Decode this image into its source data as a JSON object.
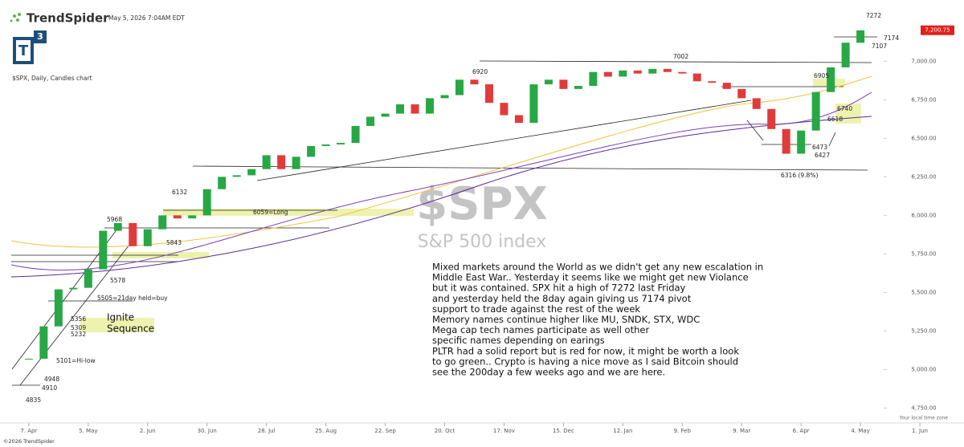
{
  "header": {
    "brand": "TrendSpider",
    "timestamp": "May 5, 2026 7:04AM EDT",
    "logo_letter": "T",
    "logo_superscript": "3",
    "chart_label": "$SPX, Daily, Candles chart",
    "copyright": "©2026 TrendSpider",
    "timezone": "Your local time zone"
  },
  "chart_data": {
    "type": "candlestick",
    "watermark_symbol": "$SPX",
    "watermark_name": "S&P 500 index",
    "x": [
      0,
      1,
      2,
      3,
      4,
      5,
      6,
      7,
      8,
      9,
      10,
      11,
      12,
      13,
      14,
      15,
      16,
      17,
      18,
      19,
      20,
      21,
      22,
      23,
      24,
      25,
      26,
      27,
      28,
      29,
      30,
      31,
      32,
      33,
      34,
      35,
      36,
      37,
      38,
      39,
      40,
      41,
      42,
      43,
      44,
      45,
      46,
      47,
      48,
      49,
      50,
      51,
      52,
      53,
      54,
      55,
      56
    ],
    "close": [
      5070,
      5280,
      5520,
      5530,
      5650,
      5900,
      5950,
      5800,
      5910,
      6000,
      5980,
      6000,
      6170,
      6250,
      6260,
      6300,
      6390,
      6300,
      6380,
      6450,
      6460,
      6470,
      6580,
      6640,
      6660,
      6720,
      6660,
      6760,
      6780,
      6880,
      6850,
      6730,
      6650,
      6600,
      6850,
      6880,
      6820,
      6840,
      6930,
      6900,
      6940,
      6920,
      6950,
      6930,
      6920,
      6870,
      6860,
      6820,
      6760,
      6690,
      6560,
      6400,
      6550,
      6800,
      6960,
      7120,
      7200
    ],
    "up_color": "#27a844",
    "down_color": "#e23a3a",
    "xlim": [
      -1.4,
      57.4
    ],
    "xticks": [
      {
        "value": 0,
        "label": "7. Apr"
      },
      {
        "value": 4,
        "label": "5. May"
      },
      {
        "value": 8,
        "label": "2. Jun"
      },
      {
        "value": 12,
        "label": "30. Jun"
      },
      {
        "value": 16,
        "label": "28. Jul"
      },
      {
        "value": 20,
        "label": "25. Aug"
      },
      {
        "value": 24,
        "label": "22. Sep"
      },
      {
        "value": 28,
        "label": "20. Oct"
      },
      {
        "value": 32,
        "label": "17. Nov"
      },
      {
        "value": 36,
        "label": "15. Dec"
      },
      {
        "value": 40,
        "label": "12. Jan"
      },
      {
        "value": 44,
        "label": "9. Feb"
      },
      {
        "value": 48,
        "label": "9. Mar"
      },
      {
        "value": 52,
        "label": "6. Apr"
      },
      {
        "value": 56,
        "label": "4. May"
      },
      {
        "value": 60,
        "label": "1. Jun"
      }
    ],
    "ylim": [
      4690,
      7345
    ],
    "yticks": [
      {
        "value": 4750,
        "label": "4,750.00"
      },
      {
        "value": 5000,
        "label": "5,000.00"
      },
      {
        "value": 5250,
        "label": "5,250.00"
      },
      {
        "value": 5500,
        "label": "5,500.00"
      },
      {
        "value": 5750,
        "label": "5,750.00"
      },
      {
        "value": 6000,
        "label": "6,000.00"
      },
      {
        "value": 6250,
        "label": "6,250.00"
      },
      {
        "value": 6500,
        "label": "6,500.00"
      },
      {
        "value": 6750,
        "label": "6,750.00"
      },
      {
        "value": 7000,
        "label": "7,000.00"
      }
    ],
    "last_price": {
      "value": 7200.75,
      "label": "7,200.75"
    },
    "annotations": [
      "7272",
      "7174",
      "7107",
      "7002",
      "6920",
      "6905",
      "6740",
      "6618",
      "6473",
      "6427",
      "6316 (9.8%)",
      "6132",
      "6059=Long",
      "5968",
      "5843",
      "5578",
      "5505=21day held=buy",
      "5356",
      "5309",
      "5232",
      "5101=Hi-low",
      "4948",
      "4910",
      "4835",
      "Ignite",
      "Sequence"
    ],
    "note_lines": [
      "Mixed markets around the World as we didn't get any new escalation in",
      "Middle East War.. Yesterday it seems like we might get new Violance",
      "but it was contained. SPX hit a high of 7272 last Friday",
      "and yesterday held the 8day again giving us 7174 pivot",
      "support to trade against the rest of the week",
      "Memory names continue higher like MU, SNDK, STX, WDC",
      "Mega cap tech names participate as well other",
      "specific names depending on earings",
      "PLTR had a solid report but is red for now, it might be worth a look",
      "to go green.. Crypto is having a nice move as I said Bitcoin should",
      "see the 200day a few weeks ago and we are here."
    ]
  }
}
